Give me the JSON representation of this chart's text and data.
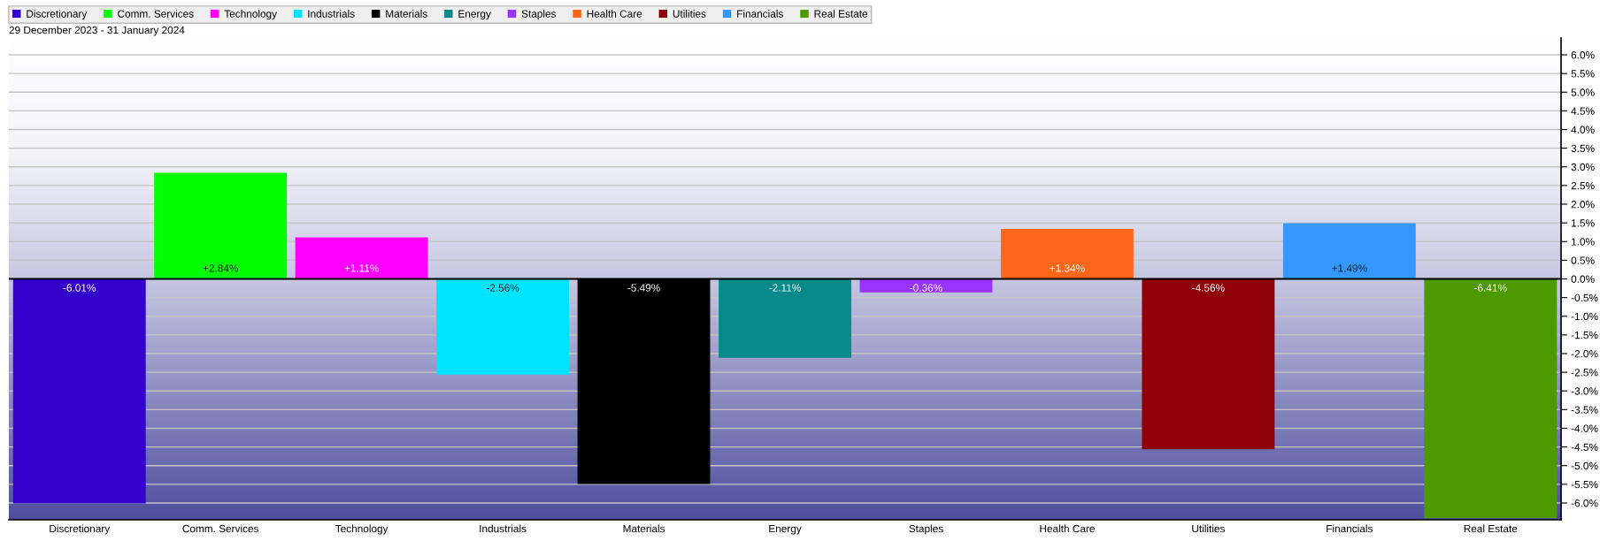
{
  "chart_data": {
    "type": "bar",
    "subtitle": "29 December 2023 - 31 January 2024",
    "categories": [
      "Discretionary",
      "Comm. Services",
      "Technology",
      "Industrials",
      "Materials",
      "Energy",
      "Staples",
      "Health Care",
      "Utilities",
      "Financials",
      "Real Estate"
    ],
    "stacked": true,
    "series": [
      {
        "name": "Discretionary",
        "color": "#3300cc",
        "values": [
          -6.01,
          null,
          null,
          null,
          null,
          null,
          null,
          null,
          null,
          null,
          null
        ],
        "value_labels": [
          "-6.01%",
          null,
          null,
          null,
          null,
          null,
          null,
          null,
          null,
          null,
          null
        ]
      },
      {
        "name": "Comm. Services",
        "color": "#00ff00",
        "values": [
          null,
          2.84,
          null,
          null,
          null,
          null,
          null,
          null,
          null,
          null,
          null
        ],
        "value_labels": [
          null,
          "+2.84%",
          null,
          null,
          null,
          null,
          null,
          null,
          null,
          null,
          null
        ]
      },
      {
        "name": "Technology",
        "color": "#ff00ff",
        "values": [
          null,
          null,
          1.11,
          null,
          null,
          null,
          null,
          null,
          null,
          null,
          null
        ],
        "value_labels": [
          null,
          null,
          "+1.11%",
          null,
          null,
          null,
          null,
          null,
          null,
          null,
          null
        ]
      },
      {
        "name": "Industrials",
        "color": "#00e5ff",
        "values": [
          null,
          null,
          null,
          -2.56,
          null,
          null,
          null,
          null,
          null,
          null,
          null
        ],
        "value_labels": [
          null,
          null,
          null,
          "-2.56%",
          null,
          null,
          null,
          null,
          null,
          null,
          null
        ]
      },
      {
        "name": "Materials",
        "color": "#000000",
        "values": [
          null,
          null,
          null,
          null,
          -5.49,
          null,
          null,
          null,
          null,
          null,
          null
        ],
        "value_labels": [
          null,
          null,
          null,
          null,
          "-5.49%",
          null,
          null,
          null,
          null,
          null,
          null
        ]
      },
      {
        "name": "Energy",
        "color": "#088a8a",
        "values": [
          null,
          null,
          null,
          null,
          null,
          -2.11,
          null,
          null,
          null,
          null,
          null
        ],
        "value_labels": [
          null,
          null,
          null,
          null,
          null,
          "-2.11%",
          null,
          null,
          null,
          null,
          null
        ]
      },
      {
        "name": "Staples",
        "color": "#9933ff",
        "values": [
          null,
          null,
          null,
          null,
          null,
          null,
          -0.36,
          null,
          null,
          null,
          null
        ],
        "value_labels": [
          null,
          null,
          null,
          null,
          null,
          null,
          "-0.36%",
          null,
          null,
          null,
          null
        ]
      },
      {
        "name": "Health Care",
        "color": "#ff6619",
        "values": [
          null,
          null,
          null,
          null,
          null,
          null,
          null,
          1.34,
          null,
          null,
          null
        ],
        "value_labels": [
          null,
          null,
          null,
          null,
          null,
          null,
          null,
          "+1.34%",
          null,
          null,
          null
        ]
      },
      {
        "name": "Utilities",
        "color": "#8f0008",
        "values": [
          null,
          null,
          null,
          null,
          null,
          null,
          null,
          null,
          -4.56,
          null,
          null
        ],
        "value_labels": [
          null,
          null,
          null,
          null,
          null,
          null,
          null,
          null,
          "-4.56%",
          null,
          null
        ]
      },
      {
        "name": "Financials",
        "color": "#3399ff",
        "values": [
          null,
          null,
          null,
          null,
          null,
          null,
          null,
          null,
          null,
          1.49,
          null
        ],
        "value_labels": [
          null,
          null,
          null,
          null,
          null,
          null,
          null,
          null,
          null,
          "+1.49%",
          null
        ]
      },
      {
        "name": "Real Estate",
        "color": "#4c9900",
        "values": [
          null,
          null,
          null,
          null,
          null,
          null,
          null,
          null,
          null,
          null,
          -6.41
        ],
        "value_labels": [
          null,
          null,
          null,
          null,
          null,
          null,
          null,
          null,
          null,
          null,
          "-6.41%"
        ]
      }
    ],
    "ylim": [
      -6.45,
      6.45
    ],
    "yticks": [
      {
        "value": -6.0,
        "label": "-6.0%"
      },
      {
        "value": -5.5,
        "label": "-5.5%"
      },
      {
        "value": -5.0,
        "label": "-5.0%"
      },
      {
        "value": -4.5,
        "label": "-4.5%"
      },
      {
        "value": -4.0,
        "label": "-4.0%"
      },
      {
        "value": -3.5,
        "label": "-3.5%"
      },
      {
        "value": -3.0,
        "label": "-3.0%"
      },
      {
        "value": -2.5,
        "label": "-2.5%"
      },
      {
        "value": -2.0,
        "label": "-2.0%"
      },
      {
        "value": -1.5,
        "label": "-1.5%"
      },
      {
        "value": -1.0,
        "label": "-1.0%"
      },
      {
        "value": -0.5,
        "label": "-0.5%"
      },
      {
        "value": 0.0,
        "label": "0.0%"
      },
      {
        "value": 0.5,
        "label": "0.5%"
      },
      {
        "value": 1.0,
        "label": "1.0%"
      },
      {
        "value": 1.5,
        "label": "1.5%"
      },
      {
        "value": 2.0,
        "label": "2.0%"
      },
      {
        "value": 2.5,
        "label": "2.5%"
      },
      {
        "value": 3.0,
        "label": "3.0%"
      },
      {
        "value": 3.5,
        "label": "3.5%"
      },
      {
        "value": 4.0,
        "label": "4.0%"
      },
      {
        "value": 4.5,
        "label": "4.5%"
      },
      {
        "value": 5.0,
        "label": "5.0%"
      },
      {
        "value": 5.5,
        "label": "5.5%"
      },
      {
        "value": 6.0,
        "label": "6.0%"
      }
    ],
    "grid": "y",
    "legend": "top left"
  }
}
